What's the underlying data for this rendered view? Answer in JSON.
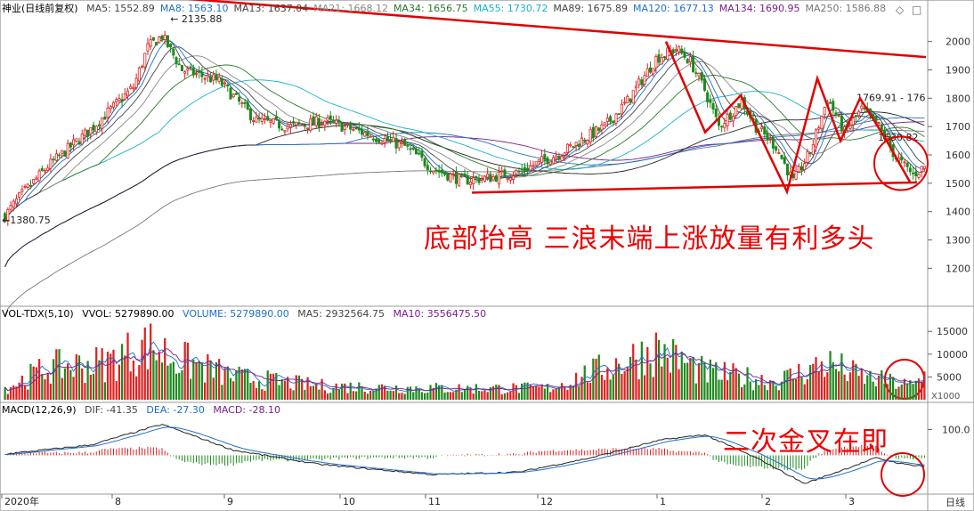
{
  "window": {
    "title": "神业(日线前复权)",
    "period_tab": "日线",
    "collapse_icon": "diamond-icon",
    "window_icon": "square-icon"
  },
  "main_panel": {
    "indicators": [
      {
        "label": "MA5: 1552.89",
        "color": "#444444"
      },
      {
        "label": "MA8: 1563.10",
        "color": "#1e6fcc"
      },
      {
        "label": "MA13: 1637.04",
        "color": "#444444"
      },
      {
        "label": "MA21: 1668.12",
        "color": "#888888"
      },
      {
        "label": "MA34: 1656.75",
        "color": "#2a7a2a"
      },
      {
        "label": "MA55: 1730.72",
        "color": "#17b3c9"
      },
      {
        "label": "MA89: 1675.89",
        "color": "#444444"
      },
      {
        "label": "MA120: 1677.13",
        "color": "#1e6fcc"
      },
      {
        "label": "MA134: 1690.95",
        "color": "#7a1f8a"
      },
      {
        "label": "MA250: 1586.88",
        "color": "#777777"
      }
    ],
    "y_ticks": [
      2000,
      1900,
      1800,
      1700,
      1600,
      1500,
      1400,
      1300,
      1200
    ],
    "y_range": [
      1110,
      2090
    ],
    "high_label": "2135.88",
    "low_label": "1380.75",
    "right_label": "1769.91 - 176",
    "right_label2": "1630.82",
    "annotation": "底部抬高  三浪末端上涨放量有利多头"
  },
  "volume_panel": {
    "label": "VOL-TDX(5,10)",
    "vvol": "VVOL: 5279890.00",
    "volume": "VOLUME: 5279890.00",
    "ma5": "MA5: 2932564.75",
    "ma10": "MA10: 3556475.50",
    "y_ticks": [
      15000,
      10000,
      5000
    ],
    "unit": "X1000"
  },
  "macd_panel": {
    "label": "MACD(12,26,9)",
    "dif": "DIF: -41.35",
    "dea": "DEA: -27.30",
    "macd": "MACD: -28.10",
    "y_tick": "100.0",
    "annotation": "二次金叉在即"
  },
  "x_axis": {
    "labels": [
      "2020年",
      "8",
      "9",
      "10",
      "11",
      "12",
      "1",
      "2",
      "3"
    ]
  },
  "colors": {
    "up": "#e02020",
    "down": "#1e8a1e",
    "annotation": "#e00000"
  },
  "chart_data": {
    "type": "candlestick",
    "title": "神业(日线前复权)",
    "price_range": [
      1110,
      2090
    ],
    "high_point": 2135.88,
    "low_point": 1380.75,
    "price_anchor_points": [
      [
        0,
        1385
      ],
      [
        5,
        1450
      ],
      [
        15,
        1560
      ],
      [
        30,
        1690
      ],
      [
        45,
        1840
      ],
      [
        50,
        1980
      ],
      [
        55,
        2020
      ],
      [
        62,
        1900
      ],
      [
        75,
        1860
      ],
      [
        88,
        1720
      ],
      [
        100,
        1700
      ],
      [
        112,
        1720
      ],
      [
        125,
        1680
      ],
      [
        140,
        1630
      ],
      [
        150,
        1550
      ],
      [
        160,
        1510
      ],
      [
        170,
        1520
      ],
      [
        180,
        1540
      ],
      [
        195,
        1610
      ],
      [
        210,
        1700
      ],
      [
        218,
        1790
      ],
      [
        228,
        1940
      ],
      [
        235,
        1975
      ],
      [
        240,
        1930
      ],
      [
        245,
        1830
      ],
      [
        250,
        1700
      ],
      [
        258,
        1790
      ],
      [
        263,
        1700
      ],
      [
        270,
        1630
      ],
      [
        276,
        1505
      ],
      [
        282,
        1610
      ],
      [
        288,
        1800
      ],
      [
        294,
        1680
      ],
      [
        300,
        1760
      ],
      [
        306,
        1700
      ],
      [
        312,
        1590
      ],
      [
        318,
        1530
      ],
      [
        322,
        1560
      ]
    ],
    "moving_averages": [
      {
        "name": "MA5",
        "last": 1552.89
      },
      {
        "name": "MA8",
        "last": 1563.1
      },
      {
        "name": "MA13",
        "last": 1637.04
      },
      {
        "name": "MA21",
        "last": 1668.12
      },
      {
        "name": "MA34",
        "last": 1656.75
      },
      {
        "name": "MA55",
        "last": 1730.72
      },
      {
        "name": "MA89",
        "last": 1675.89
      },
      {
        "name": "MA120",
        "last": 1677.13
      },
      {
        "name": "MA134",
        "last": 1690.95
      },
      {
        "name": "MA250",
        "last": 1586.88
      }
    ],
    "volume_anchor_points": [
      [
        0,
        2500
      ],
      [
        15,
        7000
      ],
      [
        35,
        8000
      ],
      [
        50,
        12000
      ],
      [
        60,
        9000
      ],
      [
        80,
        5000
      ],
      [
        110,
        3000
      ],
      [
        150,
        2500
      ],
      [
        190,
        2500
      ],
      [
        215,
        8000
      ],
      [
        228,
        11000
      ],
      [
        245,
        6000
      ],
      [
        270,
        4000
      ],
      [
        288,
        8000
      ],
      [
        300,
        5000
      ],
      [
        318,
        3000
      ],
      [
        322,
        5280
      ]
    ],
    "volume_range": [
      0,
      17000
    ],
    "macd_anchor_points": [
      [
        0,
        5
      ],
      [
        30,
        40
      ],
      [
        55,
        120
      ],
      [
        80,
        20
      ],
      [
        110,
        -35
      ],
      [
        150,
        -75
      ],
      [
        180,
        -65
      ],
      [
        205,
        -10
      ],
      [
        230,
        60
      ],
      [
        245,
        80
      ],
      [
        265,
        -20
      ],
      [
        280,
        -110
      ],
      [
        295,
        -50
      ],
      [
        305,
        -10
      ],
      [
        315,
        -35
      ],
      [
        322,
        -41.35
      ]
    ],
    "macd_last": {
      "DIF": -41.35,
      "DEA": -27.3,
      "MACD": -28.1
    },
    "x_labels": [
      "2020年",
      "8",
      "9",
      "10",
      "11",
      "12",
      "1",
      "2",
      "3"
    ]
  }
}
